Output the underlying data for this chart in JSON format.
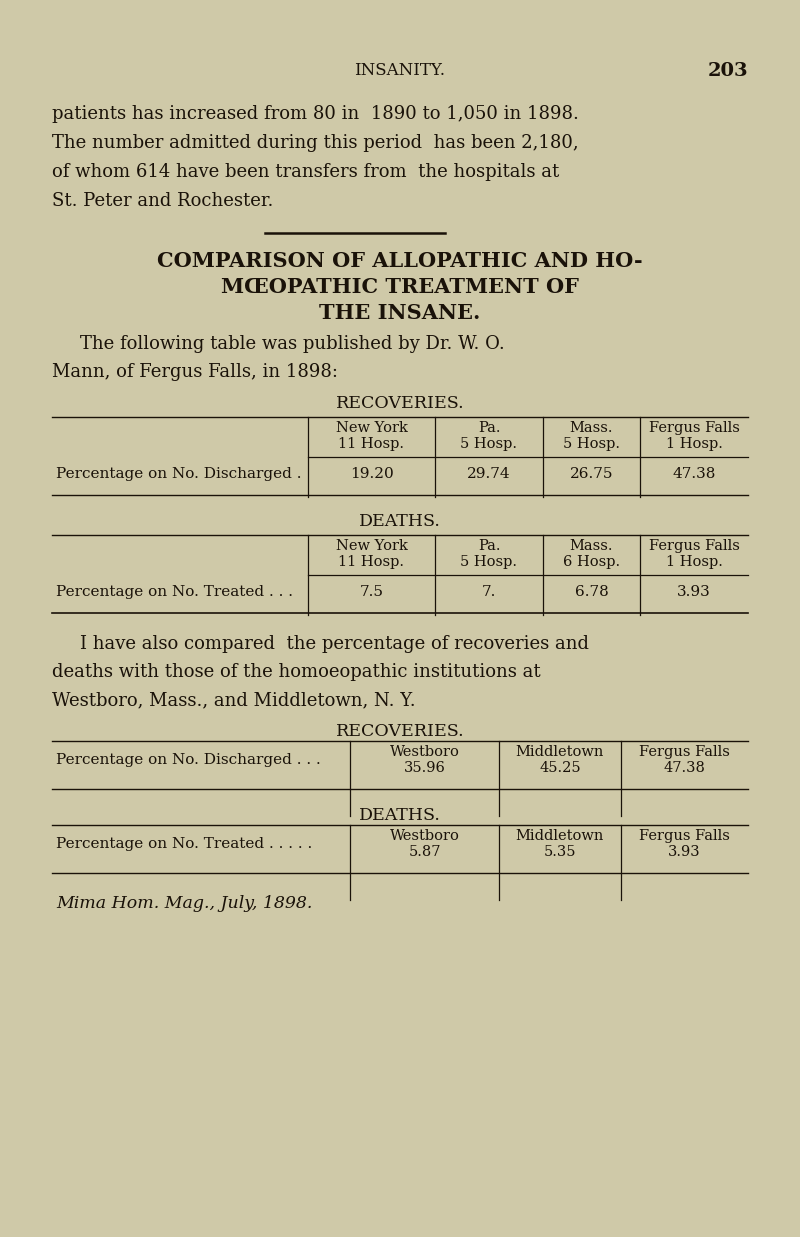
{
  "bg_color": "#cfc9a8",
  "text_color": "#1a1209",
  "page_title": "INSANITY.",
  "page_number": "203",
  "intro_lines": [
    "patients has increased from 80 in  1890 to 1,050 in 1898.",
    "The number admitted during this period  has been 2,180,",
    "of whom 614 have been transfers from  the hospitals at",
    "St. Peter and Rochester."
  ],
  "section_line1": "COMPARISON OF ALLOPATHIC AND HO-",
  "section_line2": "MŒOPATHIC TREATMENT OF",
  "section_line3": "THE INSANE.",
  "fol_line1": "The following table was published by Dr. W. O.",
  "fol_line2": "Mann, of Fergus Falls, in 1898:",
  "rec_title1": "RECOVERIES.",
  "rec_headers1_line1": [
    "New York",
    "Pa.",
    "Mass.",
    "Fergus Falls"
  ],
  "rec_headers1_line2": [
    "11 Hosp.",
    "5 Hosp.",
    "5 Hosp.",
    "1 Hosp."
  ],
  "rec_row_label1": "Percentage on No. Discharged .",
  "rec_values1": [
    "19.20",
    "29.74",
    "26.75",
    "47.38"
  ],
  "deaths_title1": "DEATHS.",
  "deaths_headers1_line1": [
    "New York",
    "Pa.",
    "Mass.",
    "Fergus Falls"
  ],
  "deaths_headers1_line2": [
    "11 Hosp.",
    "5 Hosp.",
    "6 Hosp.",
    "1 Hosp."
  ],
  "deaths_row_label1": "Percentage on No. Treated . . .",
  "deaths_values1": [
    "7.5",
    "7.",
    "6.78",
    "3.93"
  ],
  "mid_line1": "I have also compared  the percentage of recoveries and",
  "mid_line2": "deaths with those of the homoeopathic institutions at",
  "mid_line3": "Westboro, Mass., and Middletown, N. Y.",
  "rec_title2": "RECOVERIES.",
  "rec_headers2": [
    "Westboro",
    "Middletown",
    "Fergus Falls"
  ],
  "rec_row_label2": "Percentage on No. Discharged . . .",
  "rec_values2_line1": [
    "Westboro",
    "Middletown",
    "Fergus Falls"
  ],
  "rec_values2_line2": [
    "35.96",
    "45.25",
    "47.38"
  ],
  "deaths_title2": "DEATHS.",
  "deaths_headers2": [
    "Westboro",
    "Middletown",
    "Fergus Falls"
  ],
  "deaths_row_label2": "Percentage on No. Treated . . . . .",
  "deaths_values2_line1": [
    "Westboro",
    "Middletown",
    "Fergus Falls"
  ],
  "deaths_values2_line2": [
    "5.87",
    "5.35",
    "3.93"
  ],
  "footer": "Mima Hom. Mag., July, 1898."
}
